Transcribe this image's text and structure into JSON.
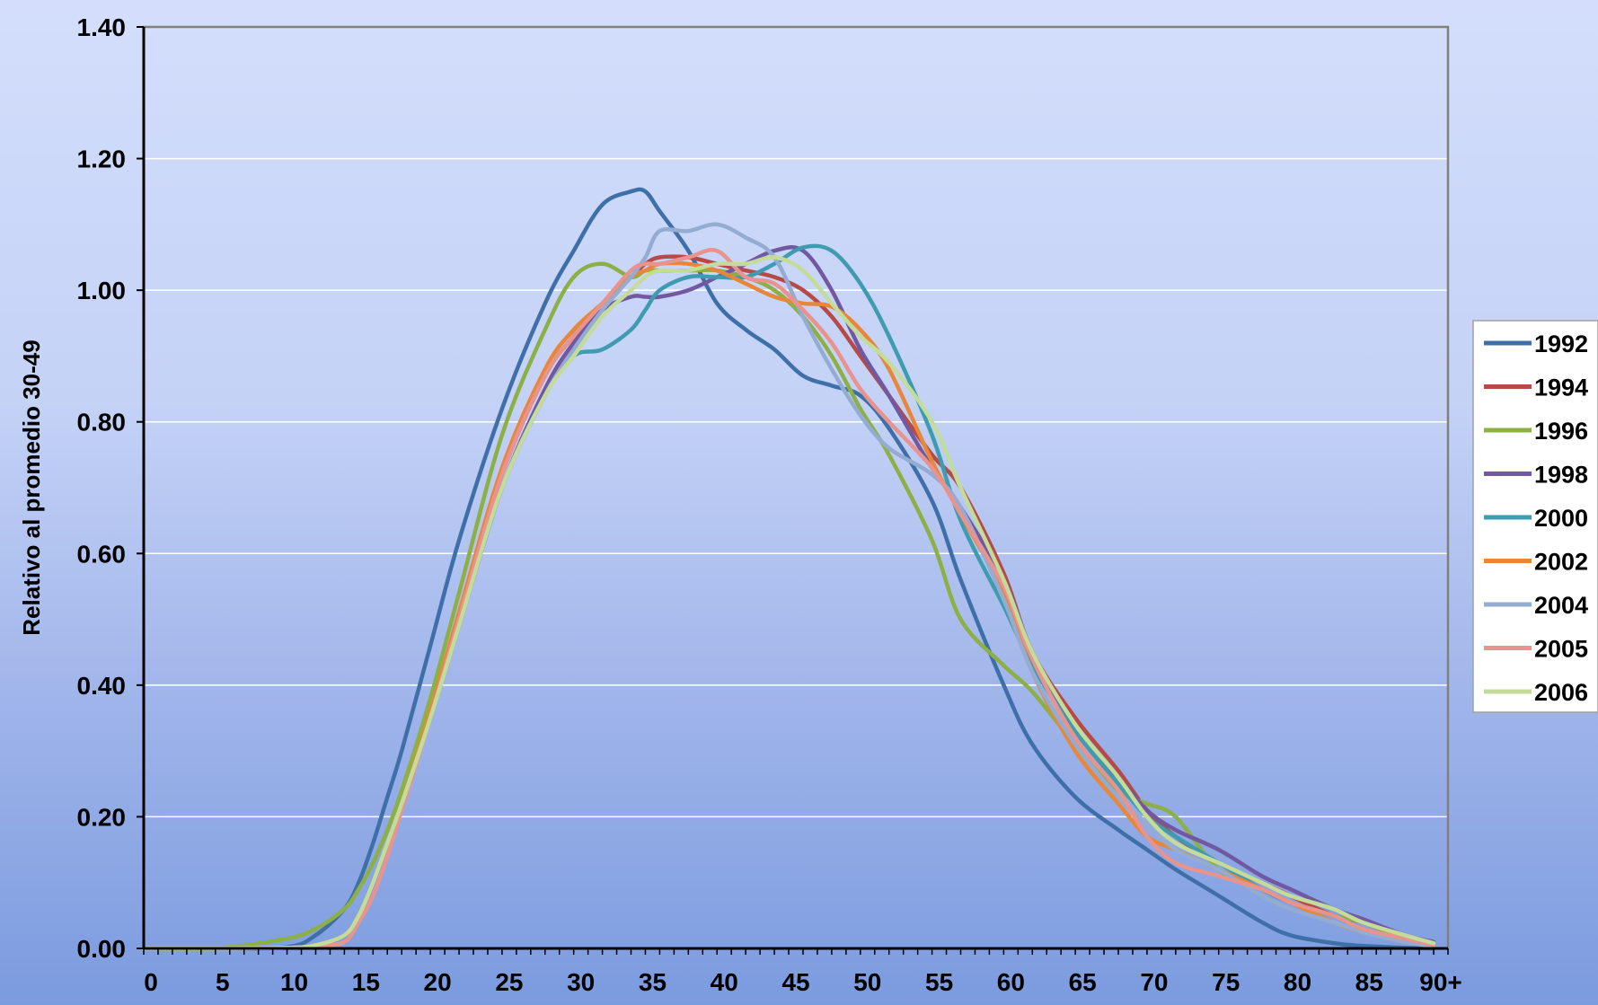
{
  "chart_data": {
    "type": "line",
    "title": "",
    "xlabel": "",
    "ylabel": "Relativo al promedio 30-49",
    "xlim": [
      0,
      91
    ],
    "ylim": [
      0,
      1.4
    ],
    "grid": true,
    "legend_position": "right",
    "x_tick_labels": [
      {
        "x": 0,
        "label": "0"
      },
      {
        "x": 5,
        "label": "5"
      },
      {
        "x": 10,
        "label": "10"
      },
      {
        "x": 15,
        "label": "15"
      },
      {
        "x": 20,
        "label": "20"
      },
      {
        "x": 25,
        "label": "25"
      },
      {
        "x": 30,
        "label": "30"
      },
      {
        "x": 35,
        "label": "35"
      },
      {
        "x": 40,
        "label": "40"
      },
      {
        "x": 45,
        "label": "45"
      },
      {
        "x": 50,
        "label": "50"
      },
      {
        "x": 55,
        "label": "55"
      },
      {
        "x": 60,
        "label": "60"
      },
      {
        "x": 65,
        "label": "65"
      },
      {
        "x": 70,
        "label": "70"
      },
      {
        "x": 75,
        "label": "75"
      },
      {
        "x": 80,
        "label": "80"
      },
      {
        "x": 85,
        "label": "85"
      },
      {
        "x": 90,
        "label": "90+"
      }
    ],
    "y_ticks": [
      {
        "y": 0.0,
        "label": "0.00"
      },
      {
        "y": 0.2,
        "label": "0.20"
      },
      {
        "y": 0.4,
        "label": "0.40"
      },
      {
        "y": 0.6,
        "label": "0.60"
      },
      {
        "y": 0.8,
        "label": "0.80"
      },
      {
        "y": 1.0,
        "label": "1.00"
      },
      {
        "y": 1.2,
        "label": "1.20"
      },
      {
        "y": 1.4,
        "label": "1.40"
      }
    ],
    "x": [
      0,
      5,
      10,
      12,
      14,
      15,
      16,
      17,
      18,
      20,
      22,
      25,
      28,
      30,
      32,
      34,
      35,
      36,
      38,
      40,
      42,
      44,
      46,
      48,
      50,
      52,
      55,
      57,
      60,
      62,
      65,
      68,
      70,
      72,
      75,
      78,
      80,
      83,
      85,
      88,
      90
    ],
    "series": [
      {
        "name": "1992",
        "color": "#3f6fa8",
        "values": [
          0,
          0,
          0.002,
          0.02,
          0.06,
          0.1,
          0.16,
          0.23,
          0.3,
          0.46,
          0.62,
          0.82,
          0.98,
          1.06,
          1.13,
          1.15,
          1.15,
          1.12,
          1.06,
          0.98,
          0.94,
          0.91,
          0.87,
          0.855,
          0.84,
          0.79,
          0.68,
          0.56,
          0.4,
          0.31,
          0.23,
          0.18,
          0.15,
          0.12,
          0.08,
          0.04,
          0.02,
          0.008,
          0.004,
          0.001,
          0
        ]
      },
      {
        "name": "1994",
        "color": "#b54a47",
        "values": [
          0,
          0,
          0.001,
          0.005,
          0.02,
          0.05,
          0.1,
          0.16,
          0.22,
          0.36,
          0.5,
          0.72,
          0.87,
          0.93,
          0.98,
          1.02,
          1.04,
          1.05,
          1.05,
          1.04,
          1.03,
          1.02,
          1.0,
          0.96,
          0.9,
          0.84,
          0.75,
          0.7,
          0.57,
          0.45,
          0.35,
          0.27,
          0.21,
          0.17,
          0.13,
          0.1,
          0.08,
          0.05,
          0.04,
          0.015,
          0.005
        ]
      },
      {
        "name": "1996",
        "color": "#8cb046",
        "values": [
          0,
          0,
          0.015,
          0.03,
          0.06,
          0.09,
          0.13,
          0.18,
          0.24,
          0.38,
          0.54,
          0.78,
          0.94,
          1.02,
          1.04,
          1.02,
          1.03,
          1.03,
          1.03,
          1.03,
          1.02,
          1.0,
          0.96,
          0.9,
          0.82,
          0.75,
          0.62,
          0.5,
          0.43,
          0.39,
          0.31,
          0.24,
          0.22,
          0.2,
          0.12,
          0.09,
          0.07,
          0.05,
          0.04,
          0.015,
          0.005
        ]
      },
      {
        "name": "1998",
        "color": "#7158a0",
        "values": [
          0,
          0,
          0.001,
          0.005,
          0.02,
          0.05,
          0.1,
          0.16,
          0.22,
          0.35,
          0.49,
          0.7,
          0.85,
          0.92,
          0.97,
          0.99,
          0.99,
          0.99,
          1.0,
          1.02,
          1.04,
          1.06,
          1.06,
          1.0,
          0.91,
          0.84,
          0.73,
          0.67,
          0.56,
          0.45,
          0.33,
          0.26,
          0.21,
          0.18,
          0.15,
          0.11,
          0.09,
          0.06,
          0.045,
          0.02,
          0.01
        ]
      },
      {
        "name": "2000",
        "color": "#3f9bb0",
        "values": [
          0,
          0,
          0.001,
          0.005,
          0.02,
          0.05,
          0.1,
          0.16,
          0.22,
          0.35,
          0.49,
          0.7,
          0.84,
          0.9,
          0.91,
          0.94,
          0.97,
          1.0,
          1.02,
          1.02,
          1.02,
          1.04,
          1.065,
          1.06,
          1.01,
          0.93,
          0.78,
          0.65,
          0.52,
          0.43,
          0.33,
          0.25,
          0.2,
          0.17,
          0.13,
          0.09,
          0.07,
          0.05,
          0.03,
          0.012,
          0.004
        ]
      },
      {
        "name": "2002",
        "color": "#e8873a",
        "values": [
          0,
          0,
          0.001,
          0.005,
          0.02,
          0.05,
          0.1,
          0.16,
          0.22,
          0.36,
          0.51,
          0.73,
          0.88,
          0.94,
          0.98,
          1.02,
          1.03,
          1.04,
          1.04,
          1.03,
          1.01,
          0.99,
          0.98,
          0.975,
          0.94,
          0.88,
          0.74,
          0.66,
          0.54,
          0.42,
          0.3,
          0.22,
          0.17,
          0.15,
          0.12,
          0.09,
          0.07,
          0.04,
          0.025,
          0.01,
          0.003
        ]
      },
      {
        "name": "2004",
        "color": "#94acd2",
        "values": [
          0,
          0,
          0.001,
          0.005,
          0.02,
          0.05,
          0.1,
          0.16,
          0.22,
          0.35,
          0.49,
          0.7,
          0.84,
          0.91,
          0.97,
          1.02,
          1.05,
          1.09,
          1.09,
          1.1,
          1.08,
          1.05,
          0.96,
          0.88,
          0.81,
          0.76,
          0.72,
          0.67,
          0.53,
          0.42,
          0.31,
          0.23,
          0.19,
          0.15,
          0.12,
          0.08,
          0.06,
          0.04,
          0.025,
          0.01,
          0.003
        ]
      },
      {
        "name": "2005",
        "color": "#e8938e",
        "values": [
          0,
          0,
          0.001,
          0.003,
          0.01,
          0.04,
          0.08,
          0.14,
          0.21,
          0.35,
          0.5,
          0.72,
          0.87,
          0.93,
          0.98,
          1.03,
          1.04,
          1.04,
          1.05,
          1.06,
          1.02,
          1.01,
          0.97,
          0.92,
          0.85,
          0.8,
          0.73,
          0.66,
          0.55,
          0.44,
          0.32,
          0.24,
          0.17,
          0.13,
          0.11,
          0.09,
          0.07,
          0.05,
          0.03,
          0.015,
          0.005
        ]
      },
      {
        "name": "2006",
        "color": "#c4dc9a",
        "values": [
          0,
          0,
          0.001,
          0.005,
          0.02,
          0.05,
          0.1,
          0.16,
          0.22,
          0.35,
          0.49,
          0.7,
          0.84,
          0.9,
          0.96,
          1.0,
          1.02,
          1.03,
          1.03,
          1.04,
          1.04,
          1.05,
          1.03,
          0.98,
          0.93,
          0.89,
          0.8,
          0.7,
          0.56,
          0.45,
          0.34,
          0.26,
          0.2,
          0.16,
          0.13,
          0.1,
          0.08,
          0.06,
          0.04,
          0.02,
          0.008
        ]
      }
    ]
  }
}
